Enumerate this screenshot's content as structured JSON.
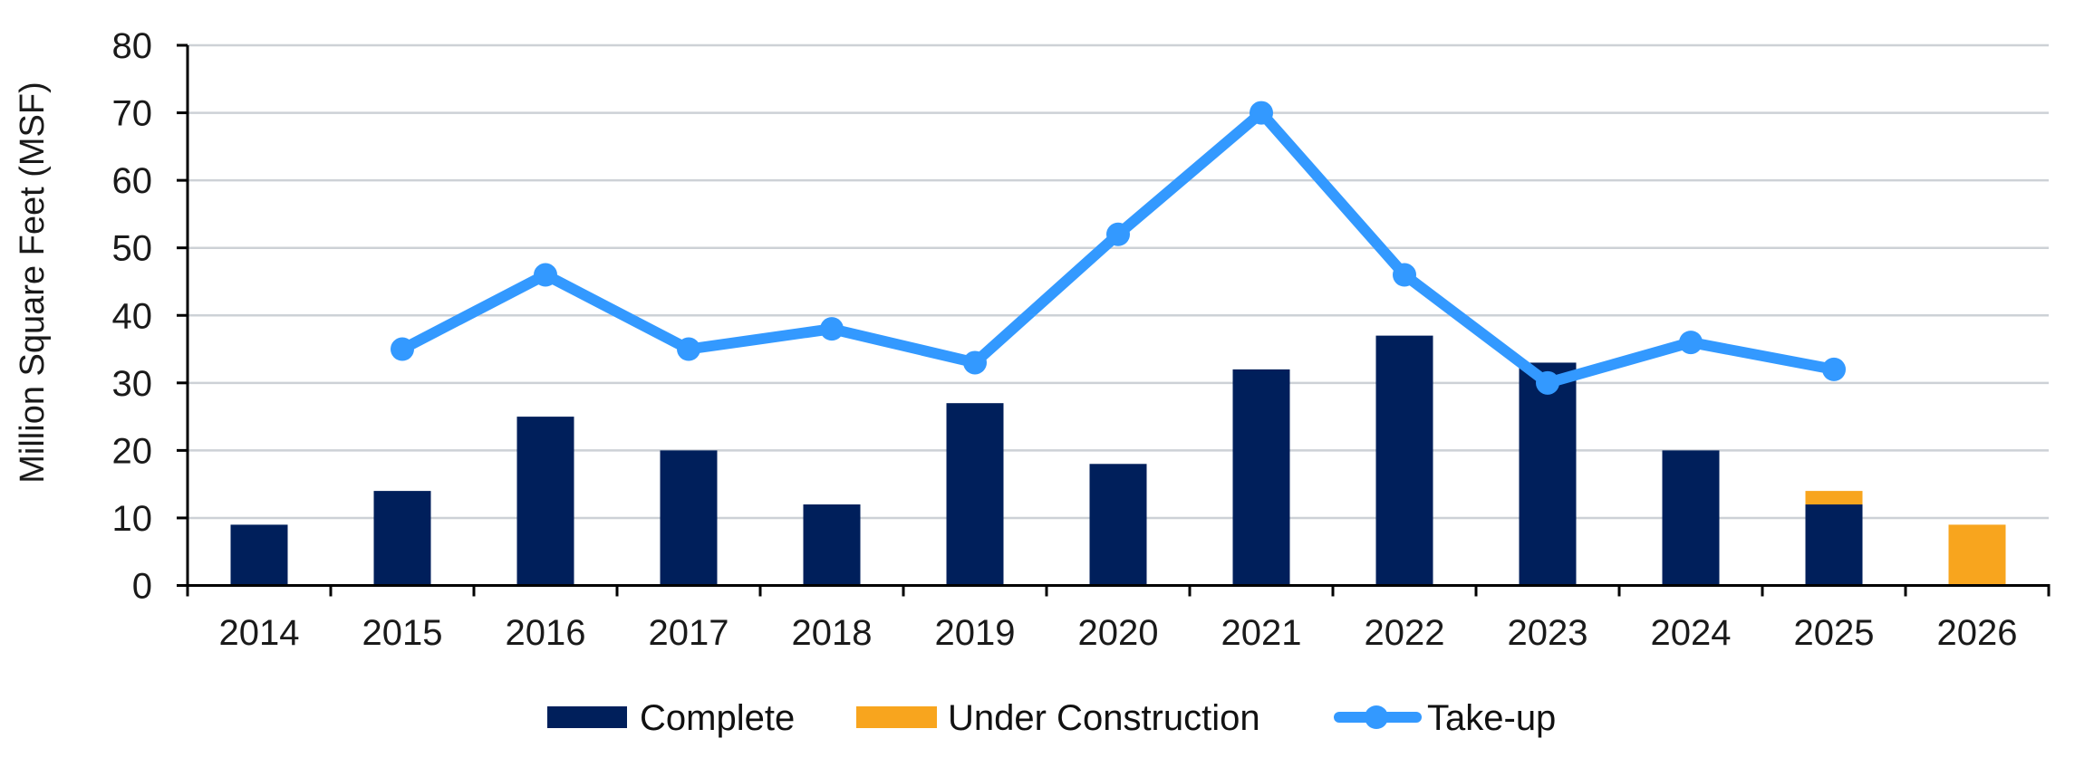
{
  "chart_data": {
    "type": "bar",
    "stacked": true,
    "title": "",
    "xlabel": "",
    "ylabel": "Million Square Feet (MSF)",
    "ylim": [
      0,
      80
    ],
    "yticks": [
      0,
      10,
      20,
      30,
      40,
      50,
      60,
      70,
      80
    ],
    "grid": true,
    "legend_position": "bottom-center",
    "categories": [
      "2014",
      "2015",
      "2016",
      "2017",
      "2018",
      "2019",
      "2020",
      "2021",
      "2022",
      "2023",
      "2024",
      "2025",
      "2026"
    ],
    "series": [
      {
        "name": "Complete",
        "kind": "bar",
        "color": "#001F5B",
        "values": [
          9,
          14,
          25,
          20,
          12,
          27,
          18,
          32,
          37,
          33,
          20,
          12,
          0
        ]
      },
      {
        "name": "Under Construction",
        "kind": "bar",
        "color": "#F8A51E",
        "values": [
          0,
          0,
          0,
          0,
          0,
          0,
          0,
          0,
          0,
          0,
          0,
          2,
          9
        ]
      },
      {
        "name": "Take-up",
        "kind": "line",
        "color": "#3399FF",
        "values": [
          null,
          35,
          46,
          35,
          38,
          33,
          52,
          70,
          46,
          30,
          36,
          32,
          null
        ]
      }
    ]
  },
  "colors": {
    "grid": "#CDD1D6",
    "axis": "#000000",
    "text": "#1a1a1a"
  }
}
